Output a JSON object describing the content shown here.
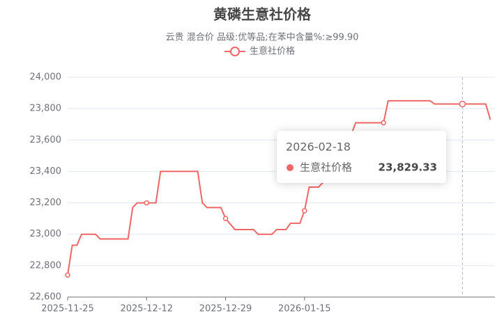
{
  "chart_data": {
    "type": "line",
    "title": "黄磷生意社价格",
    "subtitle": "云贵 混合价 品级:优等品;在苯中含量%:≥99.90",
    "x": [
      "2025-11-25",
      "2025-11-26",
      "2025-11-27",
      "2025-11-28",
      "2025-12-01",
      "2025-12-02",
      "2025-12-08",
      "2025-12-09",
      "2025-12-10",
      "2025-12-12",
      "2025-12-14",
      "2025-12-15",
      "2025-12-23",
      "2025-12-24",
      "2025-12-25",
      "2025-12-28",
      "2025-12-29",
      "2025-12-31",
      "2026-01-04",
      "2026-01-05",
      "2026-01-08",
      "2026-01-09",
      "2026-01-11",
      "2026-01-12",
      "2026-01-14",
      "2026-01-15",
      "2026-01-16",
      "2026-01-18",
      "2026-01-19",
      "2026-01-20",
      "2026-01-24",
      "2026-01-26",
      "2026-02-01",
      "2026-02-02",
      "2026-02-11",
      "2026-02-12",
      "2026-02-18",
      "2026-02-23",
      "2026-02-24"
    ],
    "series": [
      {
        "name": "生意社价格",
        "color": "#ee6666",
        "values": [
          22740,
          22930,
          22930,
          23000,
          23000,
          22970,
          22970,
          23170,
          23200,
          23200,
          23200,
          23400,
          23400,
          23200,
          23170,
          23170,
          23100,
          23030,
          23030,
          23000,
          23000,
          23030,
          23030,
          23070,
          23070,
          23150,
          23300,
          23300,
          23330,
          23400,
          23550,
          23710,
          23710,
          23850,
          23850,
          23829.33,
          23829.33,
          23829.33,
          23730
        ]
      }
    ],
    "xlim": [
      "2025-11-25",
      "2026-02-25"
    ],
    "xticks": [
      "2025-11-25",
      "2025-12-12",
      "2025-12-29",
      "2026-01-15"
    ],
    "ylim": [
      22600,
      24000
    ],
    "yticks": [
      {
        "value": 22600,
        "label": "22,600"
      },
      {
        "value": 22800,
        "label": "22,800"
      },
      {
        "value": 23000,
        "label": "23,000"
      },
      {
        "value": 23200,
        "label": "23,200"
      },
      {
        "value": 23400,
        "label": "23,400"
      },
      {
        "value": 23600,
        "label": "23,600"
      },
      {
        "value": 23800,
        "label": "23,800"
      },
      {
        "value": 24000,
        "label": "24,000"
      }
    ],
    "grid": true,
    "legend": "top",
    "tooltip": {
      "date": "2026-02-18",
      "series": "生意社价格",
      "value": 23829.33,
      "value_label": "23,829.33"
    }
  }
}
